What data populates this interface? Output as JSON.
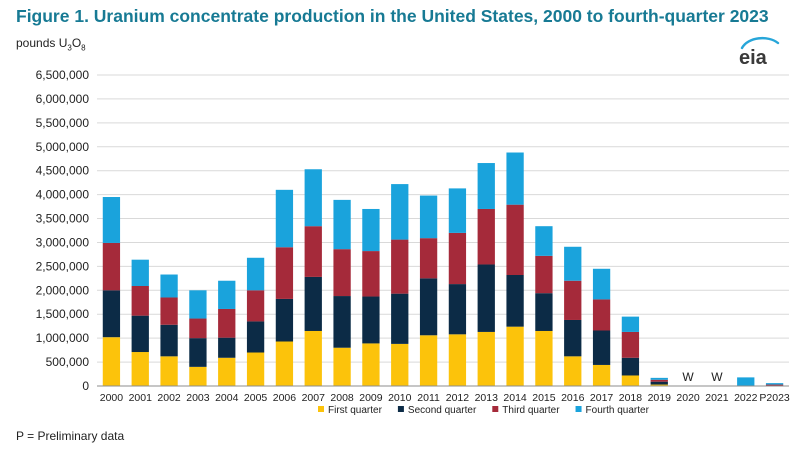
{
  "page": {
    "title": "Figure 1. Uranium concentrate production in the United States, 2000 to fourth-quarter 2023",
    "units": {
      "prefix": "pounds U",
      "sub1": "3",
      "mid": "O",
      "sub2": "8"
    },
    "logo_text": "eia",
    "footnote": "P = Preliminary data"
  },
  "chart_data": {
    "type": "bar",
    "stacked": true,
    "categories": [
      "2000",
      "2001",
      "2002",
      "2003",
      "2004",
      "2005",
      "2006",
      "2007",
      "2008",
      "2009",
      "2010",
      "2011",
      "2012",
      "2013",
      "2014",
      "2015",
      "2016",
      "2017",
      "2018",
      "2019",
      "2020",
      "2021",
      "2022",
      "P2023"
    ],
    "series": [
      {
        "name": "First quarter",
        "color": "#fcc30b",
        "values": [
          1020000,
          710000,
          620000,
          400000,
          590000,
          700000,
          930000,
          1150000,
          800000,
          890000,
          880000,
          1060000,
          1080000,
          1130000,
          1240000,
          1150000,
          620000,
          440000,
          220000,
          30000,
          null,
          null,
          0,
          0
        ]
      },
      {
        "name": "Second quarter",
        "color": "#0c2b46",
        "values": [
          980000,
          760000,
          660000,
          600000,
          420000,
          650000,
          890000,
          1130000,
          1080000,
          980000,
          1050000,
          1190000,
          1050000,
          1410000,
          1080000,
          790000,
          760000,
          720000,
          370000,
          60000,
          null,
          null,
          0,
          10000
        ]
      },
      {
        "name": "Third quarter",
        "color": "#a52a3a",
        "values": [
          990000,
          620000,
          570000,
          410000,
          600000,
          650000,
          1080000,
          1060000,
          980000,
          950000,
          1130000,
          840000,
          1070000,
          1160000,
          1470000,
          780000,
          820000,
          650000,
          540000,
          40000,
          null,
          null,
          0,
          20000
        ]
      },
      {
        "name": "Fourth quarter",
        "color": "#1aa3dc",
        "values": [
          960000,
          550000,
          480000,
          590000,
          590000,
          680000,
          1200000,
          1190000,
          1030000,
          880000,
          1160000,
          890000,
          930000,
          960000,
          1090000,
          620000,
          710000,
          640000,
          320000,
          40000,
          null,
          null,
          180000,
          30000
        ]
      }
    ],
    "annotations": [
      {
        "category": "2020",
        "text": "W"
      },
      {
        "category": "2021",
        "text": "W"
      }
    ],
    "ylim": [
      0,
      6500000
    ],
    "yticks": [
      0,
      500000,
      1000000,
      1500000,
      2000000,
      2500000,
      3000000,
      3500000,
      4000000,
      4500000,
      5000000,
      5500000,
      6000000,
      6500000
    ],
    "grid": true,
    "legend_position": "bottom"
  }
}
